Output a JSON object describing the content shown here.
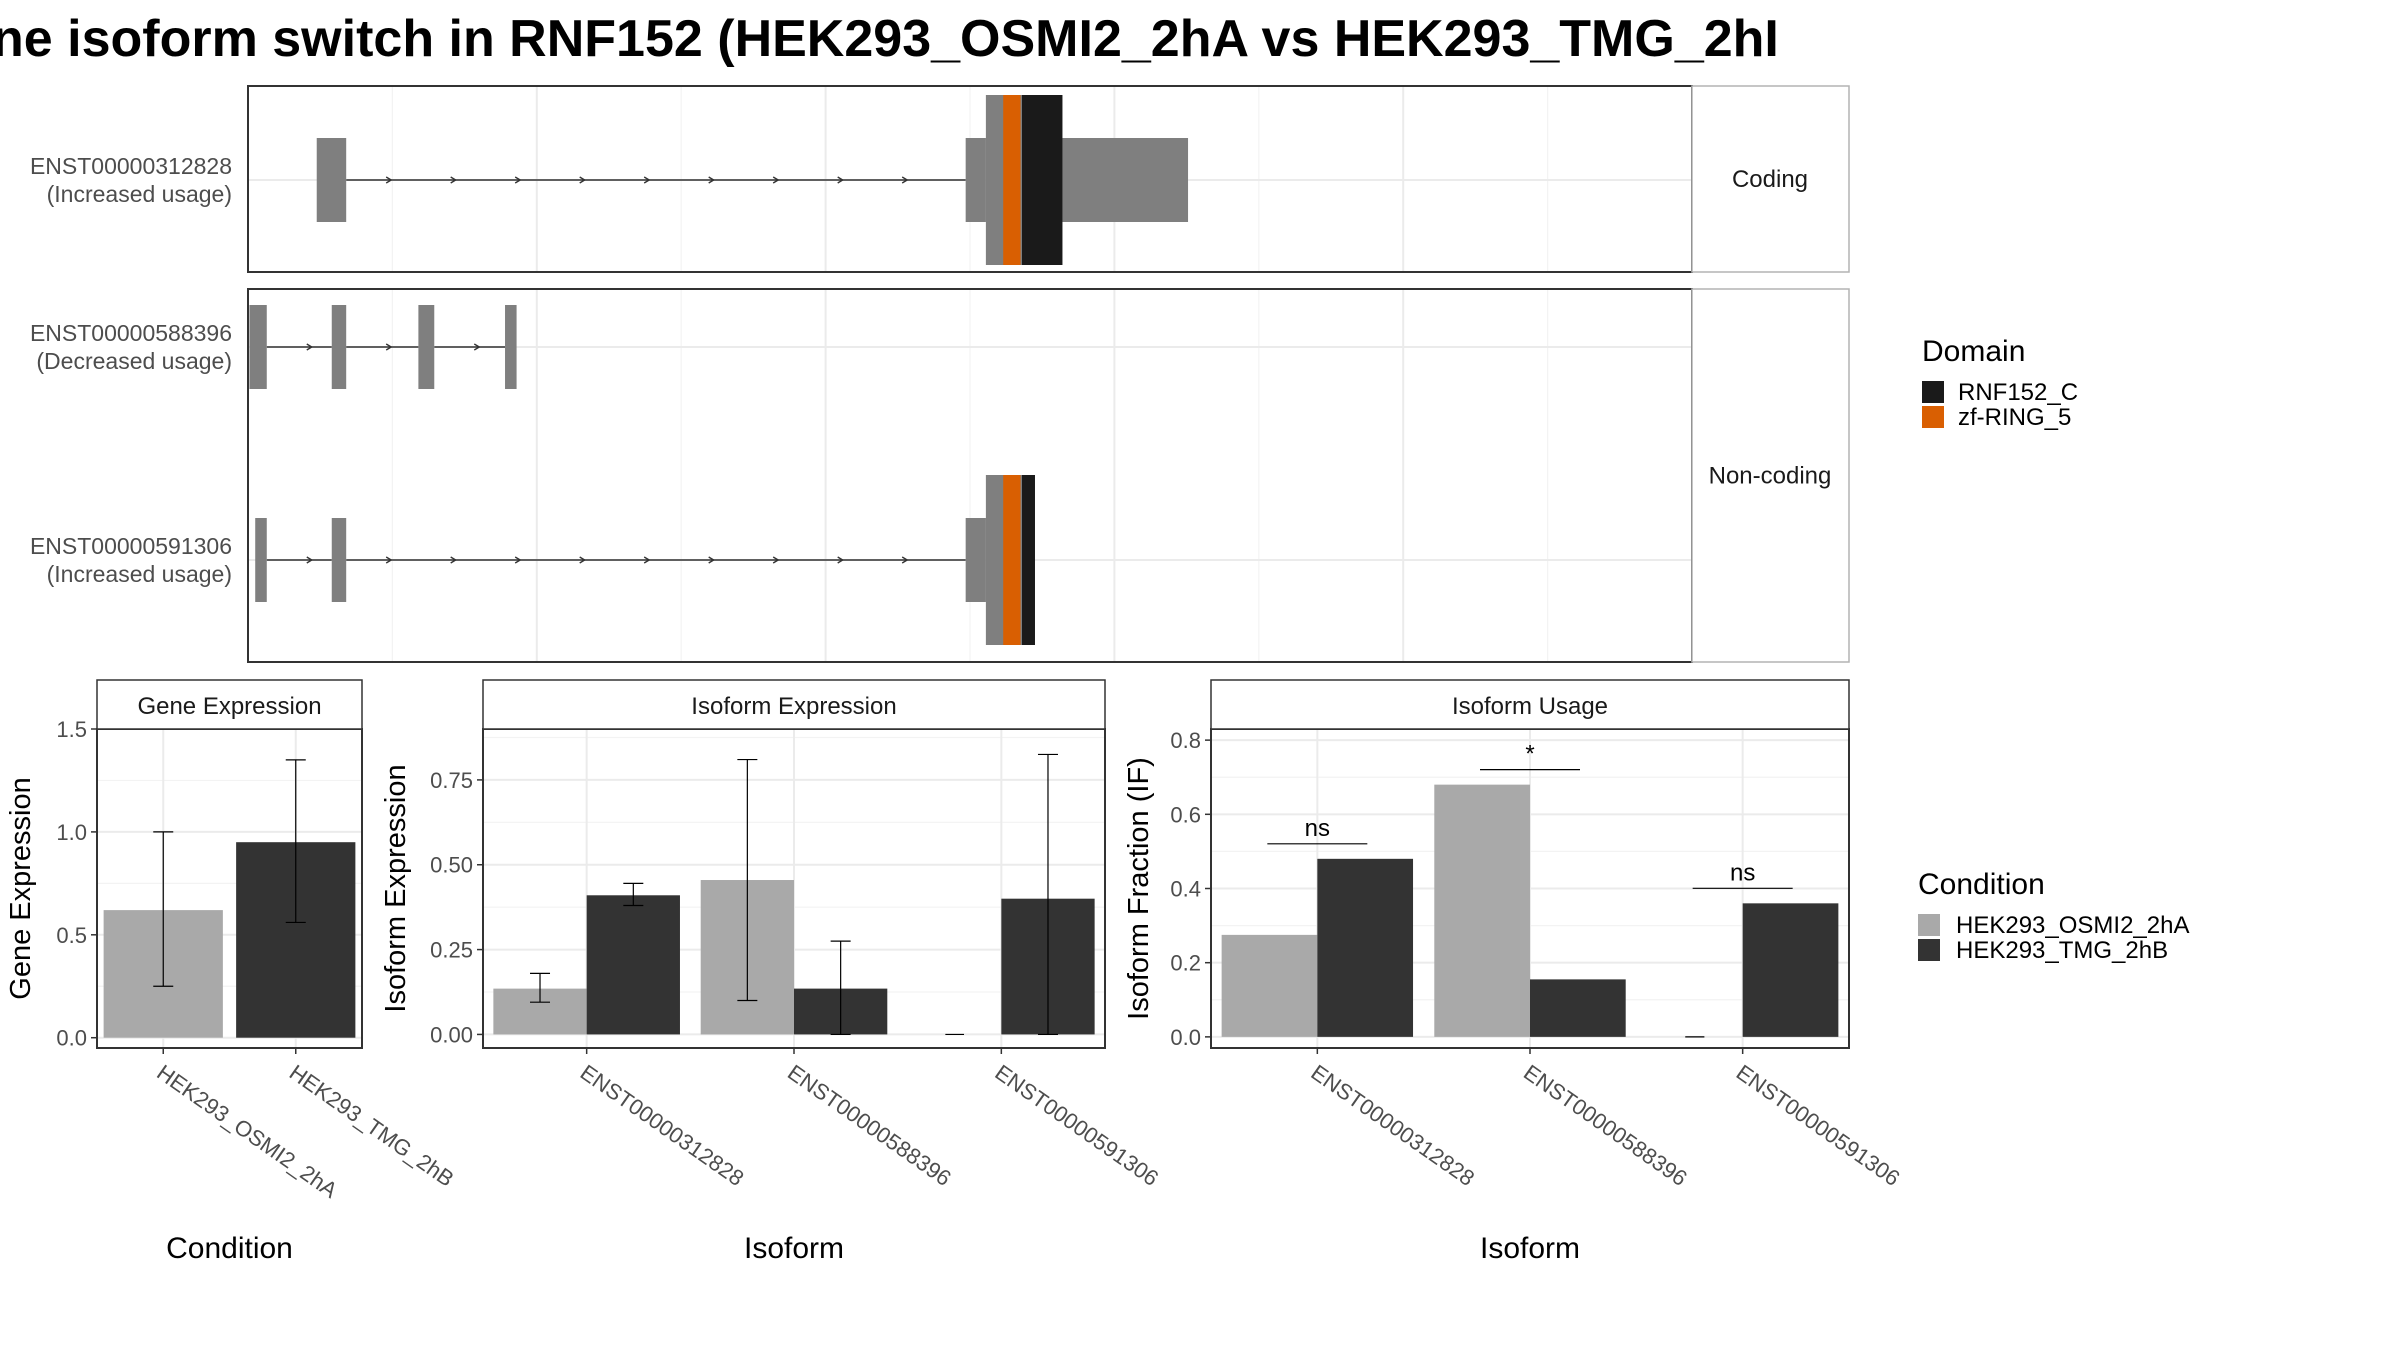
{
  "title": "ne isoform switch in RNF152 (HEK293_OSMI2_2hA vs HEK293_TMG_2hI",
  "colors": {
    "exon": "#7f7f7f",
    "rnf152_c": "#1a1a1a",
    "zf_ring_5": "#d95f02",
    "cond_a": "#a9a9a9",
    "cond_b": "#333333",
    "grid": "#ebebeb",
    "strip_text": "#1a1a1a",
    "axis_text": "#4d4d4d"
  },
  "structure": {
    "x_domain": [
      0,
      100
    ],
    "panels": [
      {
        "strip": "Coding",
        "transcripts": [
          {
            "id": "ENST00000312828",
            "note": "(Increased usage)",
            "exons": [
              [
                4.76,
                6.8
              ],
              [
                49.7,
                51.1
              ],
              [
                51.1,
                56.2
              ],
              [
                56.2,
                65.1
              ]
            ],
            "introns": [
              [
                6.8,
                49.7
              ]
            ],
            "domains": [
              {
                "name": "zf-RING_5",
                "start": 52.3,
                "end": 53.5
              },
              {
                "name": "RNF152_C",
                "start": 53.6,
                "end": 56.4
              }
            ]
          }
        ]
      },
      {
        "strip": "Non-coding",
        "transcripts": [
          {
            "id": "ENST00000588396",
            "note": "(Decreased usage)",
            "exons": [
              [
                0.1,
                1.3
              ],
              [
                5.8,
                6.8
              ],
              [
                11.8,
                12.9
              ],
              [
                17.8,
                18.6
              ]
            ],
            "introns": [
              [
                1.3,
                5.8
              ],
              [
                6.8,
                11.8
              ],
              [
                12.9,
                17.8
              ]
            ],
            "domains": []
          },
          {
            "id": "ENST00000591306",
            "note": "(Increased usage)",
            "exons": [
              [
                0.5,
                1.3
              ],
              [
                5.8,
                6.8
              ],
              [
                49.7,
                51.1
              ],
              [
                51.1,
                54.5
              ]
            ],
            "introns": [
              [
                1.3,
                5.8
              ],
              [
                6.8,
                49.7
              ]
            ],
            "domains": [
              {
                "name": "zf-RING_5",
                "start": 52.3,
                "end": 53.5
              },
              {
                "name": "RNF152_C",
                "start": 53.6,
                "end": 54.5
              }
            ]
          }
        ]
      }
    ],
    "legend": {
      "title": "Domain",
      "items": [
        {
          "label": "RNF152_C",
          "color": "#1a1a1a"
        },
        {
          "label": "zf-RING_5",
          "color": "#d95f02"
        }
      ]
    }
  },
  "chart_data": [
    {
      "type": "bar",
      "title": "Gene Expression",
      "xlabel": "Condition",
      "ylabel": "Gene Expression",
      "ylim": [
        -0.05,
        1.5
      ],
      "yticks": [
        "0.0",
        "0.5",
        "1.0",
        "1.5"
      ],
      "categories": [
        "HEK293_OSMI2_2hA",
        "HEK293_TMG_2hB"
      ],
      "series": [
        {
          "name": "HEK293_OSMI2_2hA",
          "values": [
            0.62,
            null
          ],
          "err_low": [
            0.25,
            null
          ],
          "err_high": [
            1.0,
            null
          ]
        },
        {
          "name": "HEK293_TMG_2hB",
          "values": [
            null,
            0.95
          ],
          "err_low": [
            null,
            0.56
          ],
          "err_high": [
            null,
            1.35
          ]
        }
      ]
    },
    {
      "type": "bar",
      "title": "Isoform Expression",
      "xlabel": "Isoform",
      "ylabel": "Isoform Expression",
      "ylim": [
        -0.04,
        0.9
      ],
      "yticks": [
        "0.00",
        "0.25",
        "0.50",
        "0.75"
      ],
      "categories": [
        "ENST00000312828",
        "ENST00000588396",
        "ENST00000591306"
      ],
      "series": [
        {
          "name": "HEK293_OSMI2_2hA",
          "values": [
            0.135,
            0.455,
            0.0
          ],
          "err_low": [
            0.095,
            0.1,
            0.0
          ],
          "err_high": [
            0.18,
            0.81,
            0.0
          ]
        },
        {
          "name": "HEK293_TMG_2hB",
          "values": [
            0.41,
            0.135,
            0.4
          ],
          "err_low": [
            0.38,
            0.0,
            0.0
          ],
          "err_high": [
            0.445,
            0.275,
            0.825
          ]
        }
      ]
    },
    {
      "type": "bar",
      "title": "Isoform Usage",
      "xlabel": "Isoform",
      "ylabel": "Isoform Fraction (IF)",
      "ylim": [
        -0.03,
        0.83
      ],
      "yticks": [
        "0.0",
        "0.2",
        "0.4",
        "0.6",
        "0.8"
      ],
      "categories": [
        "ENST00000312828",
        "ENST00000588396",
        "ENST00000591306"
      ],
      "series": [
        {
          "name": "HEK293_OSMI2_2hA",
          "values": [
            0.275,
            0.68,
            0.0
          ]
        },
        {
          "name": "HEK293_TMG_2hB",
          "values": [
            0.48,
            0.155,
            0.36
          ]
        }
      ],
      "significance": [
        "ns",
        "*",
        "ns"
      ]
    }
  ],
  "condition_legend": {
    "title": "Condition",
    "items": [
      {
        "label": "HEK293_OSMI2_2hA",
        "color": "#a9a9a9"
      },
      {
        "label": "HEK293_TMG_2hB",
        "color": "#333333"
      }
    ]
  }
}
